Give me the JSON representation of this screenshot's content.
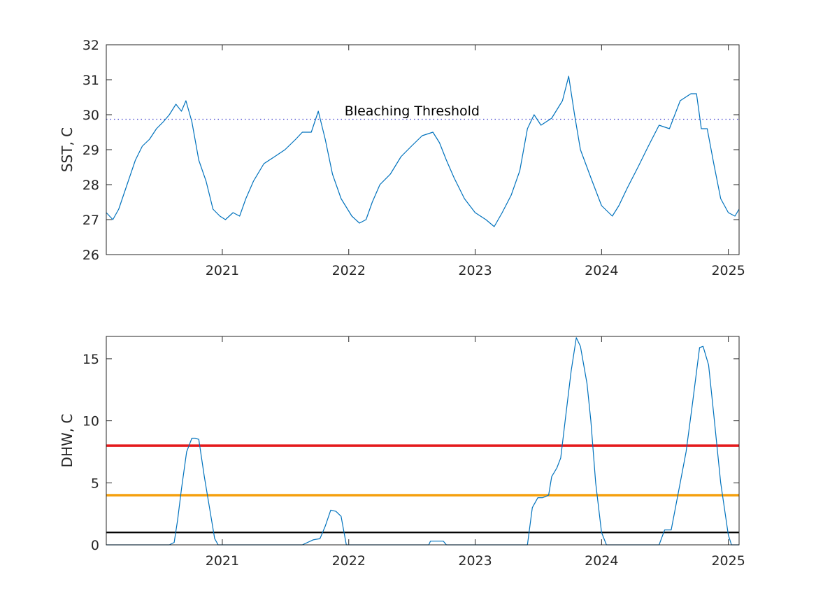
{
  "colors": {
    "series": "#0072bd",
    "threshold_line": "#4a4ad0",
    "red_line": "#e41a1c",
    "orange_line": "#f5a00f",
    "black_line": "#000000",
    "axis": "#262626"
  },
  "chart_data": [
    {
      "type": "line",
      "ylabel": "SST, C",
      "xlabel": "",
      "ylim": [
        26,
        32
      ],
      "xlim": [
        "2020-02-01",
        "2025-02-01"
      ],
      "yticks": [
        26,
        27,
        28,
        29,
        30,
        31,
        32
      ],
      "xticks": [
        "2021",
        "2022",
        "2023",
        "2024",
        "2025"
      ],
      "grid": false,
      "annotation": {
        "text": "Bleaching Threshold",
        "x": "2022-07-03",
        "y": 30.0
      },
      "threshold": {
        "value": 29.87,
        "style": "dotted"
      },
      "series": [
        {
          "x": [
            "2020-02-01",
            "2020-02-20",
            "2020-03-08",
            "2020-04-01",
            "2020-04-25",
            "2020-05-15",
            "2020-06-05",
            "2020-06-25",
            "2020-07-15",
            "2020-08-01",
            "2020-08-20",
            "2020-09-05",
            "2020-09-18",
            "2020-10-05",
            "2020-10-25",
            "2020-11-15",
            "2020-12-05",
            "2020-12-25",
            "2021-01-10",
            "2021-02-01",
            "2021-02-20",
            "2021-03-10",
            "2021-04-01",
            "2021-05-01",
            "2021-06-01",
            "2021-07-01",
            "2021-08-01",
            "2021-08-20",
            "2021-09-15",
            "2021-10-05",
            "2021-10-25",
            "2021-11-15",
            "2021-12-10",
            "2022-01-10",
            "2022-02-01",
            "2022-02-20",
            "2022-03-10",
            "2022-04-01",
            "2022-05-01",
            "2022-06-01",
            "2022-07-01",
            "2022-08-01",
            "2022-09-01",
            "2022-09-20",
            "2022-10-10",
            "2022-11-01",
            "2022-12-01",
            "2023-01-01",
            "2023-02-01",
            "2023-02-25",
            "2023-03-20",
            "2023-04-15",
            "2023-05-10",
            "2023-06-01",
            "2023-06-20",
            "2023-07-10",
            "2023-08-10",
            "2023-09-10",
            "2023-09-28",
            "2023-10-15",
            "2023-11-01",
            "2023-12-01",
            "2024-01-01",
            "2024-02-01",
            "2024-02-20",
            "2024-03-15",
            "2024-04-15",
            "2024-05-15",
            "2024-06-15",
            "2024-07-15",
            "2024-08-15",
            "2024-09-15",
            "2024-10-01",
            "2024-10-15",
            "2024-11-01",
            "2024-11-20",
            "2024-12-10",
            "2025-01-01",
            "2025-01-20",
            "2025-02-01"
          ],
          "values": [
            27.2,
            27.0,
            27.3,
            28.0,
            28.7,
            29.1,
            29.3,
            29.6,
            29.8,
            30.0,
            30.3,
            30.1,
            30.4,
            29.8,
            28.7,
            28.1,
            27.3,
            27.1,
            27.0,
            27.2,
            27.1,
            27.6,
            28.1,
            28.6,
            28.8,
            29.0,
            29.3,
            29.5,
            29.5,
            30.1,
            29.3,
            28.3,
            27.6,
            27.1,
            26.9,
            27.0,
            27.5,
            28.0,
            28.3,
            28.8,
            29.1,
            29.4,
            29.5,
            29.2,
            28.7,
            28.2,
            27.6,
            27.2,
            27.0,
            26.8,
            27.2,
            27.7,
            28.4,
            29.6,
            30.0,
            29.7,
            29.9,
            30.4,
            31.1,
            30.0,
            29.0,
            28.2,
            27.4,
            27.1,
            27.4,
            27.9,
            28.5,
            29.1,
            29.7,
            29.6,
            30.4,
            30.6,
            30.6,
            29.6,
            29.6,
            28.6,
            27.6,
            27.2,
            27.1,
            27.3
          ]
        }
      ]
    },
    {
      "type": "line",
      "ylabel": "DHW, C",
      "xlabel": "",
      "ylim": [
        0,
        16.8
      ],
      "xlim": [
        "2020-02-01",
        "2025-02-01"
      ],
      "yticks": [
        0,
        5,
        10,
        15
      ],
      "xticks": [
        "2021",
        "2022",
        "2023",
        "2024",
        "2025"
      ],
      "grid": false,
      "reference_lines": [
        {
          "value": 8,
          "color": "#e41a1c"
        },
        {
          "value": 4,
          "color": "#f5a00f"
        },
        {
          "value": 1,
          "color": "#000000"
        }
      ],
      "series": [
        {
          "x": [
            "2020-02-01",
            "2020-08-01",
            "2020-08-15",
            "2020-08-25",
            "2020-09-05",
            "2020-09-20",
            "2020-10-05",
            "2020-10-15",
            "2020-10-25",
            "2020-11-10",
            "2020-11-25",
            "2020-12-10",
            "2020-12-20",
            "2021-08-20",
            "2021-09-20",
            "2021-10-10",
            "2021-10-25",
            "2021-11-10",
            "2021-11-25",
            "2021-12-10",
            "2021-12-25",
            "2022-08-20",
            "2022-08-25",
            "2022-10-01",
            "2022-10-10",
            "2023-06-01",
            "2023-06-15",
            "2023-07-01",
            "2023-07-15",
            "2023-08-01",
            "2023-08-10",
            "2023-08-25",
            "2023-09-05",
            "2023-09-20",
            "2023-10-05",
            "2023-10-20",
            "2023-11-01",
            "2023-11-20",
            "2023-12-01",
            "2023-12-15",
            "2024-01-01",
            "2024-01-15",
            "2024-06-15",
            "2024-07-01",
            "2024-07-20",
            "2024-08-15",
            "2024-09-01",
            "2024-09-20",
            "2024-10-10",
            "2024-10-20",
            "2024-11-05",
            "2024-11-20",
            "2024-12-10",
            "2025-01-01",
            "2025-01-10",
            "2025-02-01"
          ],
          "values": [
            0,
            0,
            0.2,
            2.0,
            4.5,
            7.5,
            8.6,
            8.6,
            8.5,
            5.5,
            3.0,
            0.5,
            0,
            0,
            0.4,
            0.5,
            1.5,
            2.8,
            2.7,
            2.3,
            0,
            0,
            0.3,
            0.3,
            0,
            0,
            3.0,
            3.8,
            3.8,
            4.0,
            5.5,
            6.2,
            7.0,
            10.5,
            14.0,
            16.7,
            16.0,
            13.0,
            10.0,
            5.0,
            1.0,
            0,
            0,
            1.2,
            1.2,
            5.0,
            7.5,
            11.5,
            15.9,
            16.0,
            14.5,
            10.5,
            5.0,
            0.8,
            0,
            0
          ]
        }
      ]
    }
  ]
}
